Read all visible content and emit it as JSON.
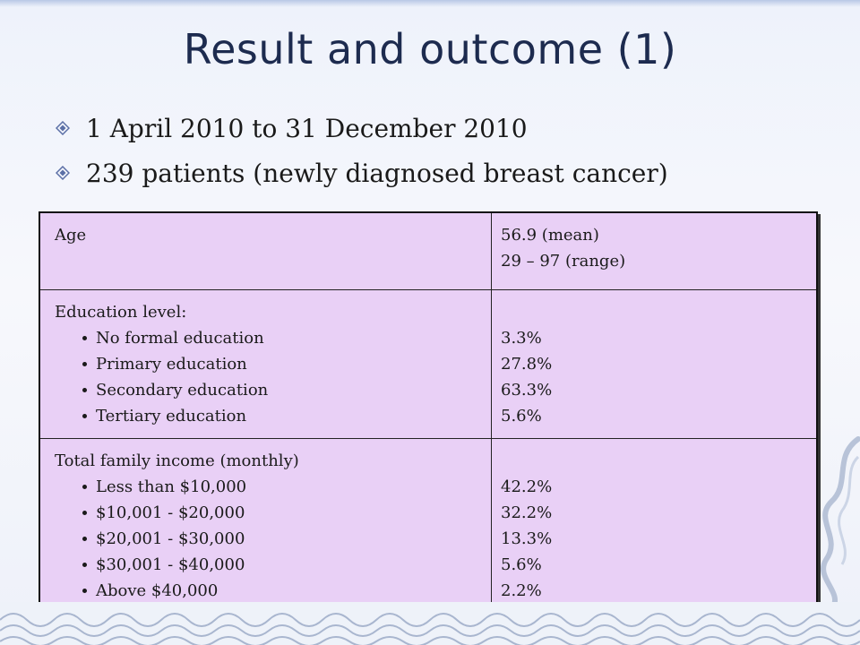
{
  "title": "Result and outcome (1)",
  "bullets": [
    {
      "text": "1 April 2010 to 31 December 2010",
      "icon": "diamond-bullet-icon"
    },
    {
      "text": "239 patients (newly diagnosed breast cancer)",
      "icon": "diamond-bullet-icon"
    }
  ],
  "table": {
    "rows": [
      {
        "label": "Age",
        "items": [],
        "values": [
          "56.9 (mean)",
          "29 – 97 (range)"
        ]
      },
      {
        "label": "Education level:",
        "items": [
          "No formal education",
          "Primary education",
          "Secondary education",
          "Tertiary education"
        ],
        "values": [
          "3.3%",
          "27.8%",
          "63.3%",
          "5.6%"
        ]
      },
      {
        "label": "Total family income (monthly)",
        "items": [
          "Less than $10,000",
          "$10,001 - $20,000",
          "$20,001 - $30,000",
          "$30,001 - $40,000",
          "Above $40,000"
        ],
        "values": [
          "42.2%",
          "32.2%",
          "13.3%",
          "5.6%",
          "2.2%"
        ]
      }
    ]
  },
  "colors": {
    "title": "#1d2b4f",
    "table_fill": "#e9d0f6",
    "bullet": "#5b6fa6"
  }
}
